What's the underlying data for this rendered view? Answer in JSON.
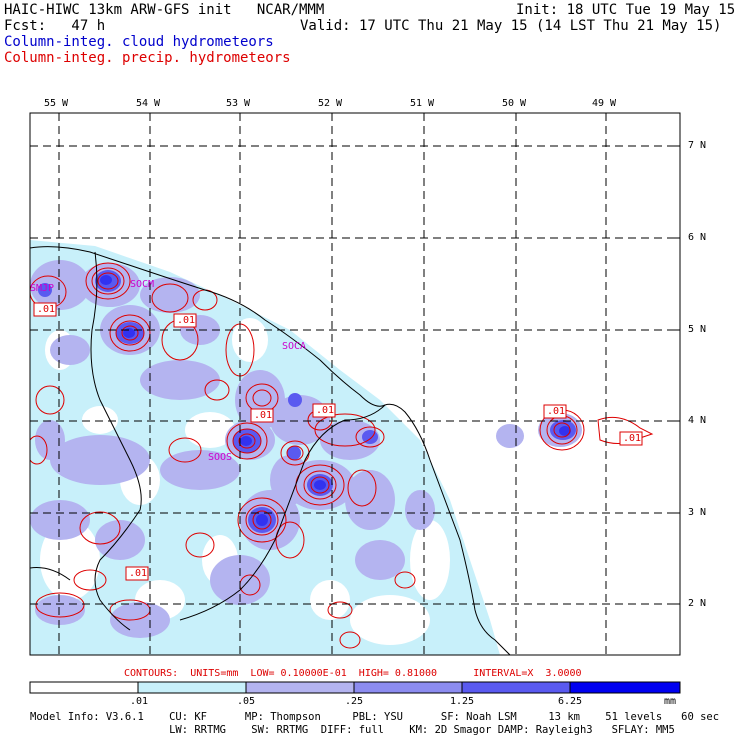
{
  "header": {
    "title": "HAIC-HIWC 13km ARW-GFS init   NCAR/MMM",
    "forecast": "Fcst:   47 h",
    "init": "Init: 18 UTC Tue 19 May 15",
    "valid": "Valid: 17 UTC Thu 21 May 15 (14 LST Thu 21 May 15)",
    "legend_cloud": "Column-integ. cloud hydrometeors",
    "legend_precip": "Column-integ. precip. hydrometeors"
  },
  "axes": {
    "lon_labels": [
      "55 W",
      "54 W",
      "53 W",
      "52 W",
      "51 W",
      "50 W",
      "49 W"
    ],
    "lat_labels": [
      "7 N",
      "6 N",
      "5 N",
      "4 N",
      "3 N",
      "2 N"
    ]
  },
  "map_labels": {
    "station_smjp": "SMJP",
    "station_socm": "SOCM",
    "station_soca": "SOCA",
    "station_soos": "SOOS",
    "contour_labels": [
      ".01",
      ".01",
      ".01",
      ".01",
      ".01",
      ".01",
      ".01"
    ]
  },
  "contour_info": "CONTOURS:  UNITS=mm  LOW= 0.10000E-01  HIGH= 0.81000      INTERVAL=X  3.0000",
  "colorbar": {
    "ticks": [
      ".01",
      ".05",
      ".25",
      "1.25",
      "6.25"
    ],
    "units": "mm",
    "colors": [
      "#ffffff",
      "#c8f0fa",
      "#b4b4f0",
      "#8c8cf0",
      "#5a5af0",
      "#3232f0",
      "#0000f0"
    ]
  },
  "footer": {
    "line1": "Model Info: V3.6.1    CU: KF      MP: Thompson     PBL: YSU      SF: Noah LSM     13 km    51 levels   60 sec",
    "line2": "                      LW: RRTMG    SW: RRTMG  DIFF: full    KM: 2D Smagor DAMP: Rayleigh3   SFLAY: MM5"
  },
  "colors": {
    "cloud_legend": "#0000cc",
    "precip_contour": "#dd0000",
    "station_label": "#cc00cc",
    "coastline": "#000000"
  }
}
